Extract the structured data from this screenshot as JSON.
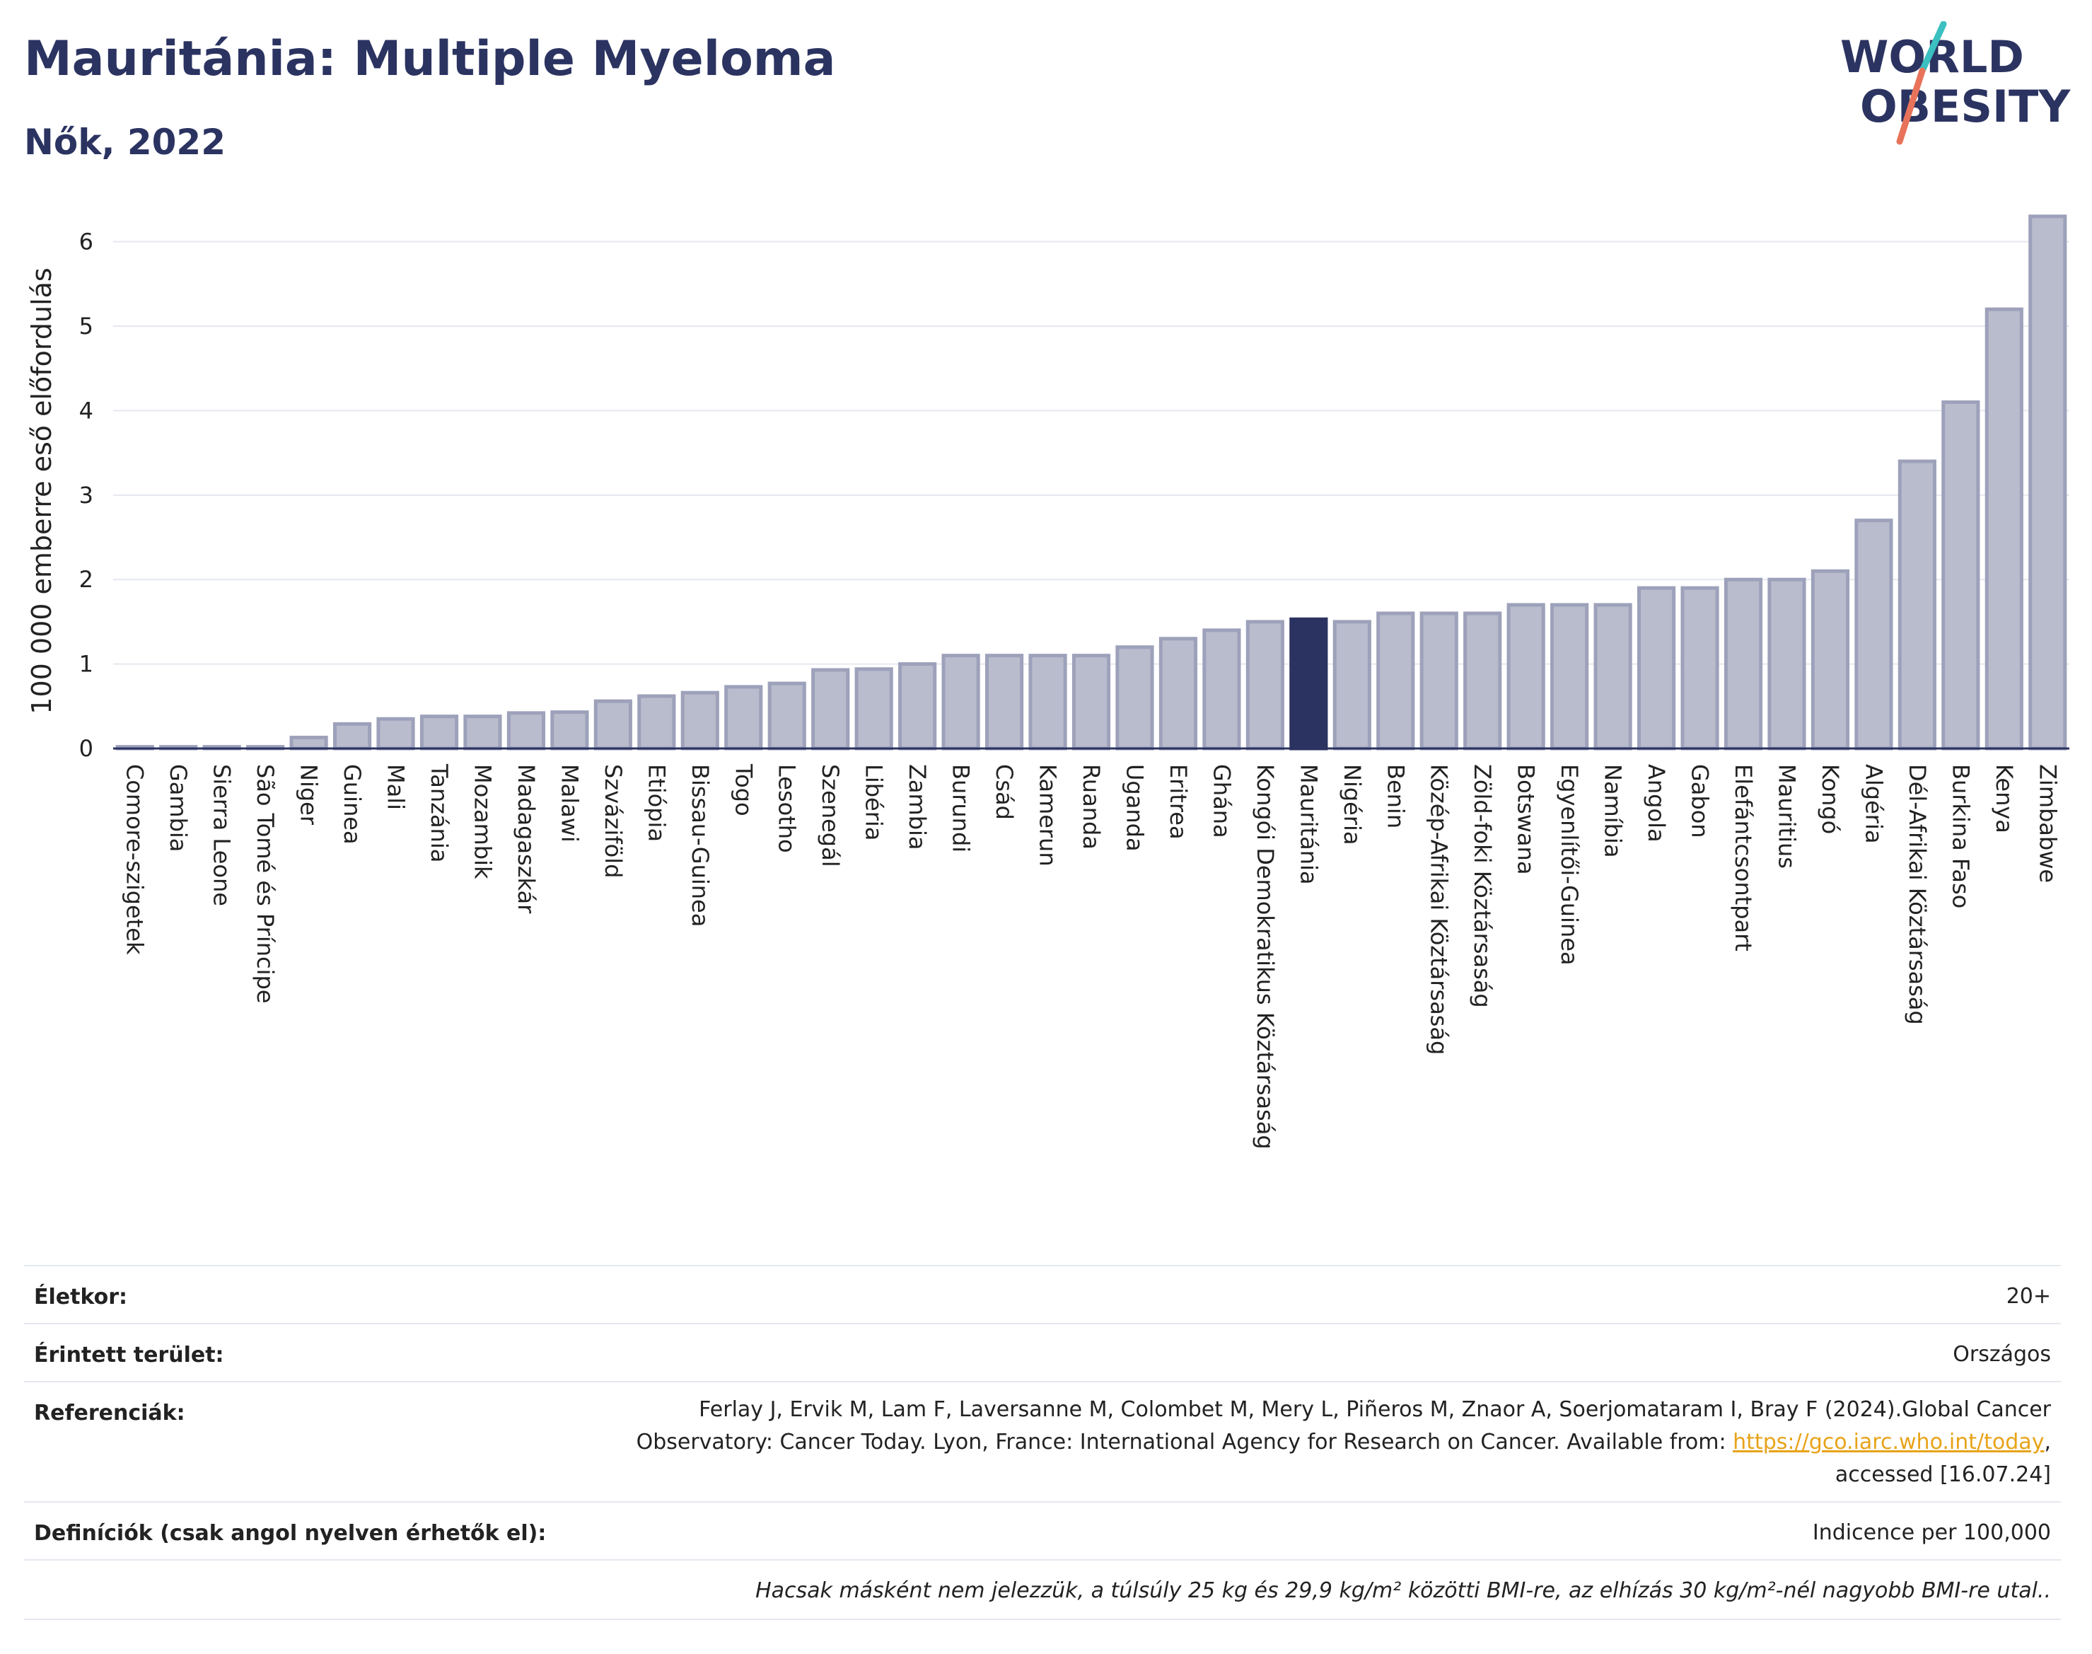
{
  "header": {
    "title": "Mauritánia: Multiple Myeloma",
    "subtitle": "Nők, 2022"
  },
  "logo": {
    "line1": "WORLD",
    "line2": "OBESITY",
    "colors": {
      "text": "#2b3361",
      "slash_top": "#3bbfc0",
      "slash_bottom": "#e8735a"
    }
  },
  "colors": {
    "bar": "#b9bccd",
    "bar_border": "#9da1ba",
    "highlight": "#2b3361",
    "grid": "#e6e8f0",
    "axis": "#2b3361",
    "link": "#e8a319"
  },
  "chart_data": {
    "type": "bar",
    "ylabel": "100 000 emberre eső előfordulás",
    "ylim": [
      0,
      6.6
    ],
    "yticks": [
      0,
      1,
      2,
      3,
      4,
      5,
      6
    ],
    "highlight": "Mauritánia",
    "grid": true,
    "categories": [
      "Comore-szigetek",
      "Gambia",
      "Sierra Leone",
      "São Tomé és Príncipe",
      "Niger",
      "Guinea",
      "Mali",
      "Tanzánia",
      "Mozambik",
      "Madagaszkár",
      "Malawi",
      "Szváziföld",
      "Etiópia",
      "Bissau-Guinea",
      "Togo",
      "Lesotho",
      "Szenegál",
      "Libéria",
      "Zambia",
      "Burundi",
      "Csád",
      "Kamerun",
      "Ruanda",
      "Uganda",
      "Eritrea",
      "Ghána",
      "Kongói Demokratikus Köztársaság",
      "Mauritánia",
      "Nigéria",
      "Benin",
      "Közép-Afrikai Köztársaság",
      "Zöld-foki Köztársaság",
      "Botswana",
      "Egyenlítői-Guinea",
      "Namíbia",
      "Angola",
      "Gabon",
      "Elefántcsontpart",
      "Mauritius",
      "Kongó",
      "Algéria",
      "Dél-Afrikai Köztársaság",
      "Burkina Faso",
      "Kenya",
      "Zimbabwe"
    ],
    "values": [
      0.02,
      0.02,
      0.02,
      0.02,
      0.13,
      0.29,
      0.35,
      0.38,
      0.38,
      0.42,
      0.43,
      0.56,
      0.62,
      0.66,
      0.73,
      0.77,
      0.93,
      0.94,
      1.0,
      1.1,
      1.1,
      1.1,
      1.1,
      1.2,
      1.3,
      1.4,
      1.5,
      1.53,
      1.5,
      1.6,
      1.6,
      1.6,
      1.7,
      1.7,
      1.7,
      1.9,
      1.9,
      2.0,
      2.0,
      2.1,
      2.7,
      3.4,
      4.1,
      5.2,
      6.3
    ]
  },
  "info": {
    "age_label": "Életkor:",
    "age_value": "20+",
    "area_label": "Érintett terület:",
    "area_value": "Országos",
    "ref_label": "Referenciák:",
    "ref_line1": "Ferlay J, Ervik M, Lam F, Laversanne M, Colombet M, Mery L, Piñeros M, Znaor A, Soerjomataram I, Bray F (2024).Global Cancer",
    "ref_line2_pre": "Observatory: Cancer Today. Lyon, France: International Agency for Research on Cancer. Available from: ",
    "ref_link": "https://gco.iarc.who.int/today",
    "ref_line2_post": ",",
    "ref_line3": "accessed [16.07.24]",
    "def_label": "Definíciók (csak angol nyelven érhetők el):",
    "def_value": "Indicence per 100,000",
    "note": "Hacsak másként nem jelezzük, a túlsúly 25 kg és 29,9 kg/m² közötti BMI-re, az elhízás 30 kg/m²-nél nagyobb BMI-re utal.."
  }
}
